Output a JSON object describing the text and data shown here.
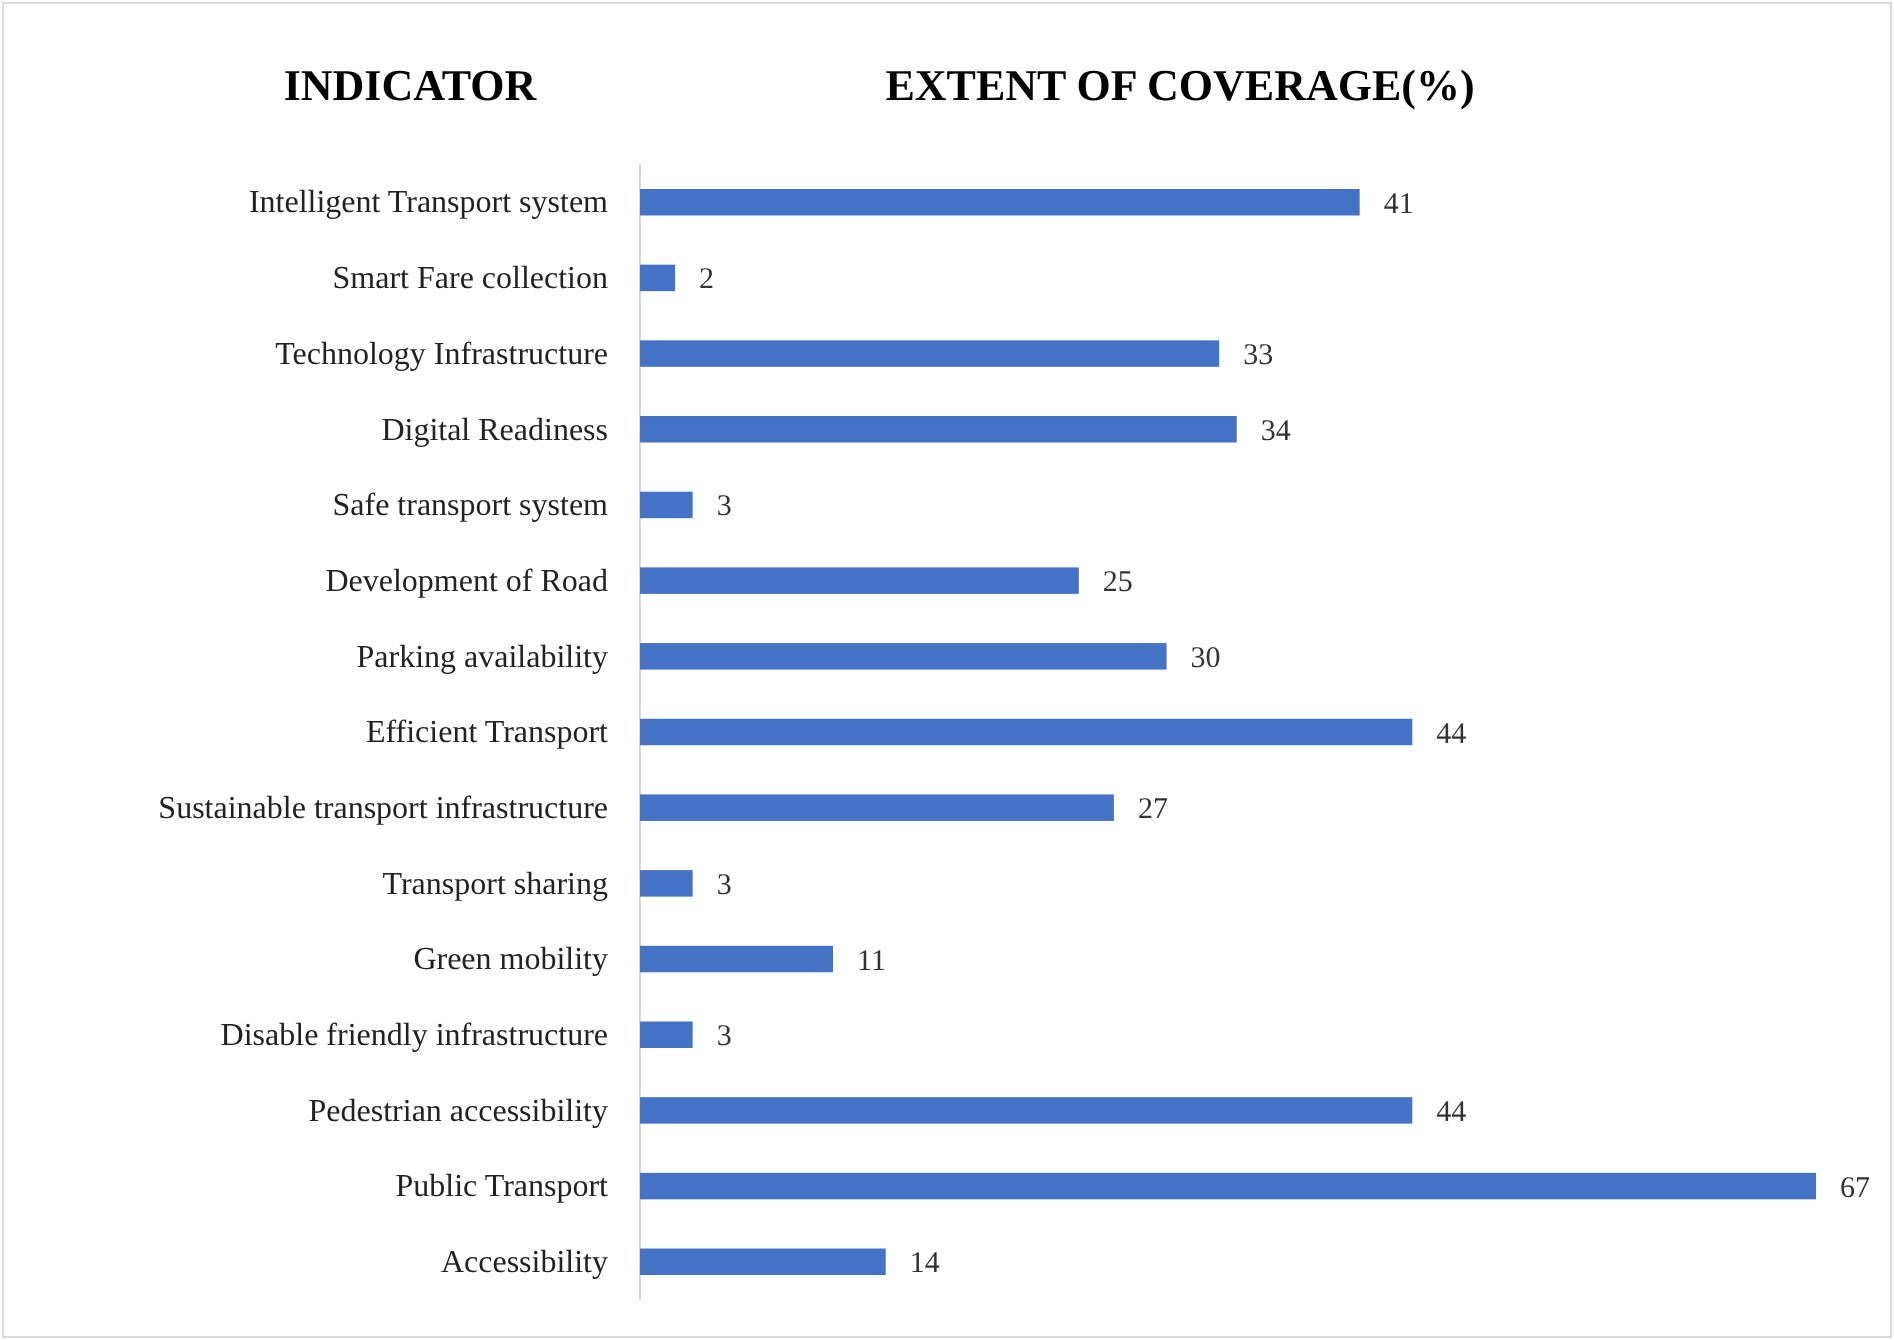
{
  "chart_data": {
    "type": "bar",
    "orientation": "horizontal",
    "title": "EXTENT OF COVERAGE(%)",
    "ylabel": "INDICATOR",
    "categories": [
      "Intelligent Transport system",
      "Smart Fare collection",
      "Technology Infrastructure",
      "Digital Readiness",
      "Safe transport system",
      "Development of Road",
      "Parking availability",
      "Efficient Transport",
      "Sustainable transport infrastructure",
      "Transport sharing",
      "Green mobility",
      "Disable friendly infrastructure",
      "Pedestrian accessibility",
      "Public Transport",
      "Accessibility"
    ],
    "values": [
      41,
      2,
      33,
      34,
      3,
      25,
      30,
      44,
      27,
      3,
      11,
      3,
      44,
      67,
      14
    ],
    "color": "#4472c4",
    "data_labels": true,
    "tick_labels": "y"
  }
}
